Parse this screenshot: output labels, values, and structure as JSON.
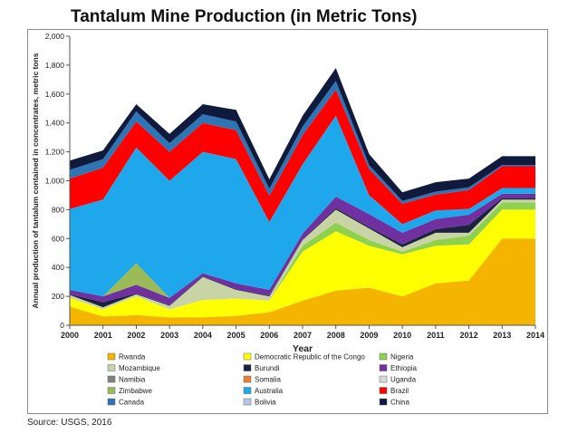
{
  "page": {
    "title": "Tantalum Mine Production (in Metric Tons)",
    "source": "Source: USGS, 2016"
  },
  "chart_data": {
    "type": "area",
    "stacked": true,
    "xlabel": "Year",
    "ylabel": "Annual production of tantalum contained in concentrates, metric tons",
    "ylim": [
      0,
      2000
    ],
    "yticks": [
      "0",
      "200",
      "400",
      "600",
      "800",
      "1,000",
      "1,200",
      "1,400",
      "1,600",
      "1,800",
      "2,000"
    ],
    "x": [
      "2000",
      "2001",
      "2002",
      "2003",
      "2004",
      "2005",
      "2006",
      "2007",
      "2008",
      "2009",
      "2010",
      "2011",
      "2012",
      "2013",
      "2014"
    ],
    "grid": false,
    "legend_position": "bottom",
    "series": [
      {
        "name": "Rwanda",
        "color": "#f5b400",
        "values": [
          130,
          60,
          70,
          55,
          55,
          65,
          90,
          170,
          240,
          260,
          200,
          290,
          310,
          600,
          600
        ]
      },
      {
        "name": "Democratic Republic of the Congo",
        "color": "#ffff00",
        "values": [
          60,
          50,
          130,
          55,
          120,
          120,
          80,
          340,
          410,
          290,
          290,
          260,
          250,
          200,
          200
        ]
      },
      {
        "name": "Nigeria",
        "color": "#8fd14f",
        "values": [
          0,
          0,
          0,
          0,
          0,
          0,
          0,
          40,
          60,
          40,
          20,
          40,
          60,
          50,
          50
        ]
      },
      {
        "name": "Mozambique",
        "color": "#c9d4a6",
        "values": [
          20,
          15,
          15,
          25,
          160,
          60,
          30,
          40,
          90,
          80,
          30,
          50,
          20,
          20,
          20
        ]
      },
      {
        "name": "Burundi",
        "color": "#1b2240",
        "values": [
          5,
          35,
          5,
          5,
          5,
          5,
          5,
          5,
          10,
          10,
          20,
          25,
          55,
          10,
          10
        ]
      },
      {
        "name": "Ethiopia",
        "color": "#7030a0",
        "values": [
          30,
          40,
          60,
          50,
          20,
          40,
          40,
          40,
          80,
          90,
          80,
          70,
          70,
          30,
          30
        ]
      },
      {
        "name": "Namibia",
        "color": "#7f7f7f",
        "values": [
          0,
          0,
          0,
          0,
          0,
          0,
          0,
          0,
          0,
          0,
          0,
          0,
          0,
          0,
          0
        ]
      },
      {
        "name": "Somalia",
        "color": "#ed7d31",
        "values": [
          0,
          0,
          0,
          0,
          0,
          0,
          0,
          0,
          0,
          0,
          0,
          0,
          0,
          0,
          0
        ]
      },
      {
        "name": "Uganda",
        "color": "#d9d9d9",
        "values": [
          0,
          0,
          0,
          0,
          0,
          0,
          0,
          0,
          0,
          0,
          0,
          0,
          0,
          0,
          0
        ]
      },
      {
        "name": "Zimbabwe",
        "color": "#9bbb59",
        "values": [
          0,
          0,
          150,
          0,
          0,
          0,
          0,
          0,
          0,
          0,
          0,
          0,
          0,
          0,
          0
        ]
      },
      {
        "name": "Australia",
        "color": "#1ea7ea",
        "values": [
          560,
          670,
          800,
          810,
          840,
          860,
          470,
          480,
          560,
          130,
          60,
          60,
          40,
          40,
          40
        ]
      },
      {
        "name": "Brazil",
        "color": "#ff0000",
        "values": [
          210,
          220,
          180,
          200,
          200,
          200,
          180,
          200,
          180,
          180,
          140,
          110,
          130,
          150,
          150
        ]
      },
      {
        "name": "Canada",
        "color": "#2e75b6",
        "values": [
          60,
          60,
          70,
          60,
          60,
          60,
          50,
          60,
          60,
          30,
          20,
          20,
          20,
          10,
          10
        ]
      },
      {
        "name": "Bolivia",
        "color": "#b4c7e7",
        "values": [
          0,
          0,
          0,
          0,
          0,
          0,
          0,
          0,
          0,
          0,
          0,
          0,
          0,
          0,
          0
        ]
      },
      {
        "name": "China",
        "color": "#101a3c",
        "values": [
          65,
          60,
          50,
          65,
          70,
          80,
          65,
          75,
          90,
          75,
          60,
          65,
          60,
          60,
          60
        ]
      }
    ]
  }
}
